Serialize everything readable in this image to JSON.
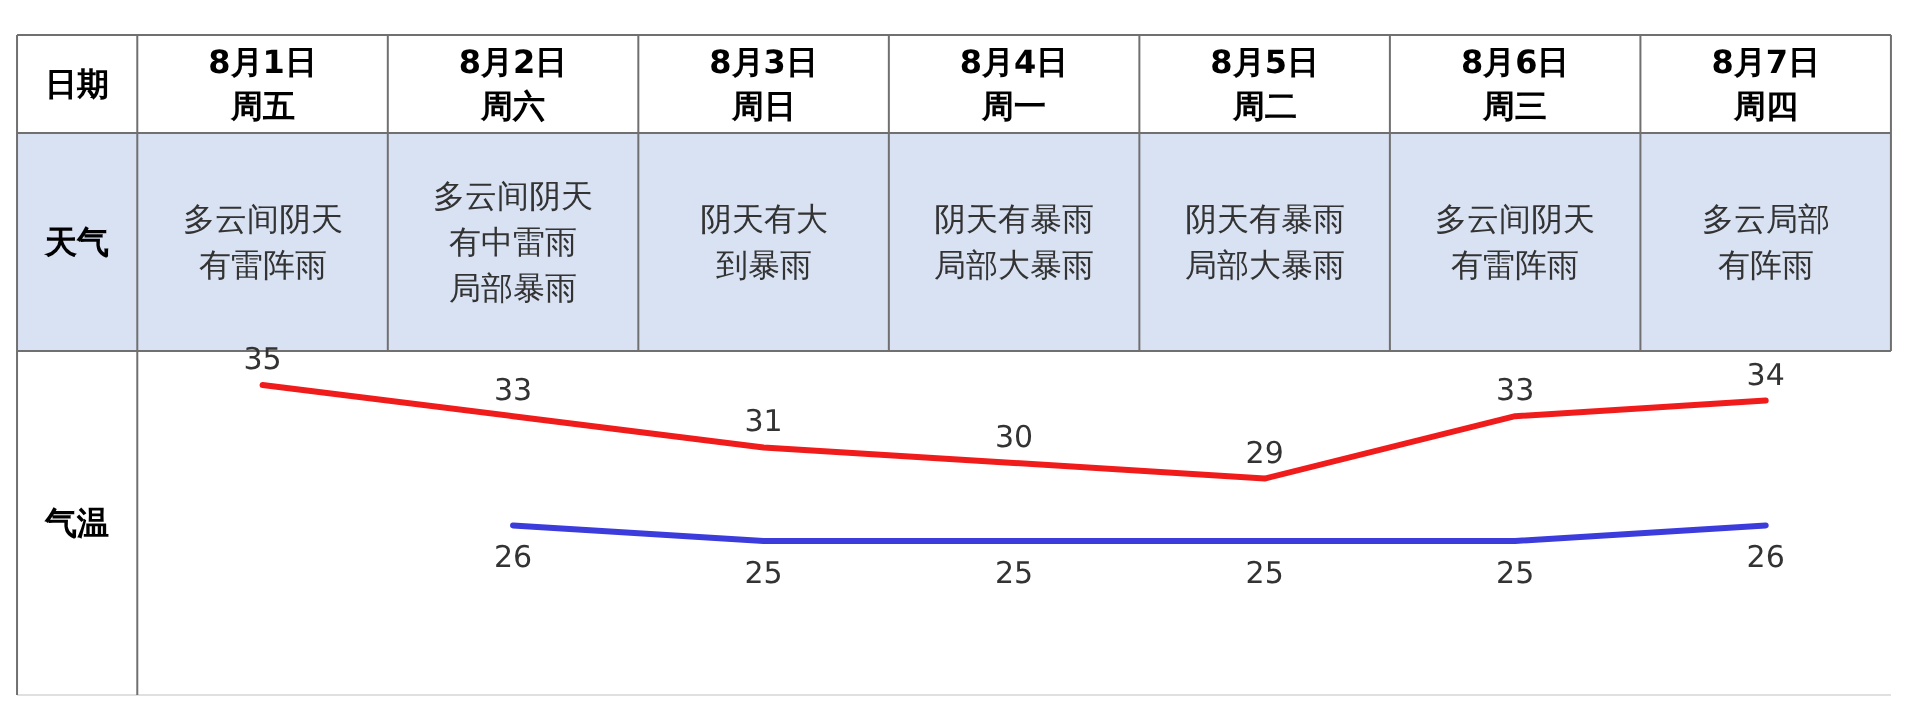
{
  "chart_data": {
    "type": "line",
    "categories": [
      "8月1日周五",
      "8月2日周六",
      "8月3日周日",
      "8月4日周一",
      "8月5日周二",
      "8月6日周三",
      "8月7日周四"
    ],
    "series": [
      {
        "color": "#f01c1c",
        "values": [
          35,
          33,
          31,
          30,
          29,
          33,
          34
        ]
      },
      {
        "color": "#3c3cdc",
        "values": [
          null,
          26,
          25,
          25,
          25,
          25,
          26
        ]
      }
    ],
    "data_labels": true,
    "annotations": [
      "日期",
      "天气",
      "气温",
      "多云间阴天有雷阵雨",
      "多云间阴天有中雷雨局部暴雨",
      "阴天有大到暴雨",
      "阴天有暴雨局部大暴雨",
      "阴天有暴雨局部大暴雨",
      "多云间阴天有雷阵雨",
      "多云局部有阵雨"
    ]
  }
}
